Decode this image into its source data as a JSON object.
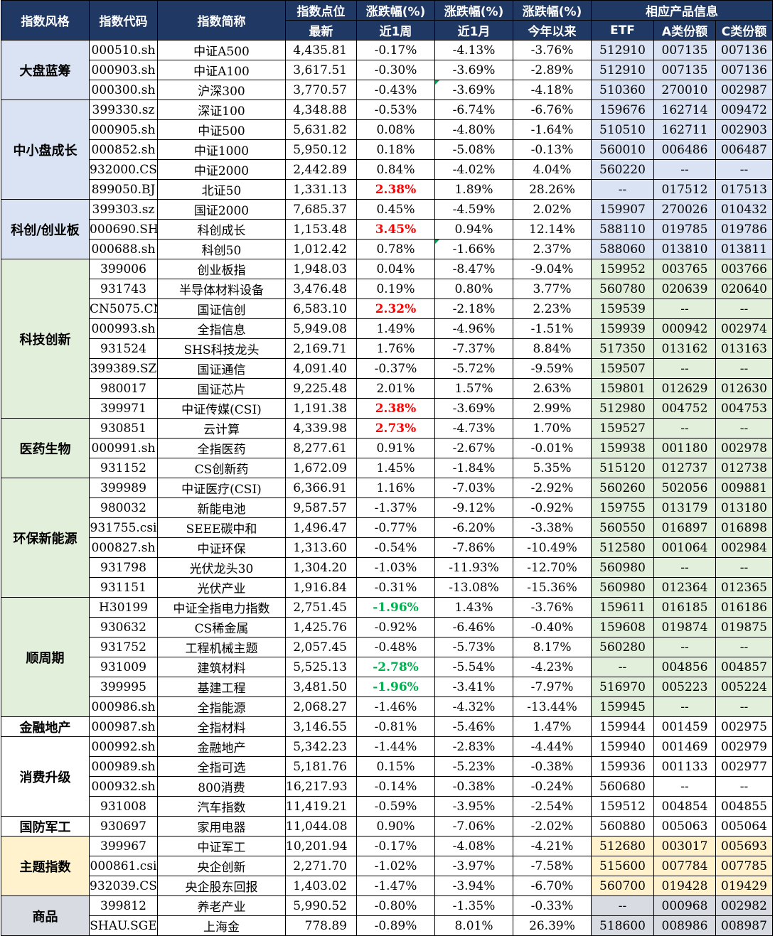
{
  "header": {
    "style": "指数风格",
    "code": "指数代码",
    "name": "指数简称",
    "points_top": "指数点位",
    "points_sub": "最新",
    "chg_top": "涨跌幅(%)",
    "week": "近1周",
    "month": "近1月",
    "ytd": "今年以来",
    "product_top": "相应产品信息",
    "etf": "ETF",
    "a_share": "A类份额",
    "c_share": "C类份额"
  },
  "groups": [
    {
      "category": "大盘蓝筹",
      "rows": [
        [
          "000510.sh",
          "中证A500",
          "4,435.81",
          "-0.17%",
          "-4.13%",
          "-3.76%",
          "512910",
          "007135",
          "007136"
        ],
        [
          "000903.sh",
          "中证A100",
          "3,617.51",
          "-0.30%",
          "-3.69%",
          "-2.89%",
          "512910",
          "007135",
          "007136"
        ],
        [
          "000300.sh",
          "沪深300",
          "3,770.57",
          "-0.43%",
          "-3.69%",
          "-4.18%",
          "510360",
          "270010",
          "002987"
        ]
      ]
    },
    {
      "category": "中小盘成长",
      "rows": [
        [
          "399330.sz",
          "深证100",
          "4,348.88",
          "-0.53%",
          "-6.74%",
          "-6.76%",
          "159676",
          "162714",
          "009472"
        ],
        [
          "000905.sh",
          "中证500",
          "5,631.82",
          "0.08%",
          "-4.80%",
          "-1.64%",
          "510510",
          "162711",
          "002903"
        ],
        [
          "000852.sh",
          "中证1000",
          "5,950.12",
          "0.18%",
          "-5.08%",
          "-0.13%",
          "560010",
          "006486",
          "006487"
        ],
        [
          "932000.CSI",
          "中证2000",
          "2,442.89",
          "0.84%",
          "-4.02%",
          "4.04%",
          "560220",
          "--",
          "--"
        ],
        [
          "899050.BJ",
          "北证50",
          "1,331.13",
          "2.38%",
          "1.89%",
          "28.26%",
          "--",
          "017512",
          "017513"
        ]
      ]
    },
    {
      "category": "科创/创业板",
      "rows": [
        [
          "399303.sz",
          "国证2000",
          "7,685.37",
          "0.45%",
          "-4.59%",
          "2.02%",
          "159907",
          "270026",
          "010432"
        ],
        [
          "000690.SH",
          "科创成长",
          "1,153.48",
          "3.45%",
          "0.94%",
          "12.14%",
          "588110",
          "019785",
          "019786"
        ],
        [
          "000688.sh",
          "科创50",
          "1,012.42",
          "0.78%",
          "-1.66%",
          "2.37%",
          "588060",
          "013810",
          "013811"
        ]
      ]
    },
    {
      "category": "科技创新",
      "rows": [
        [
          "399006",
          "创业板指",
          "1,948.03",
          "0.04%",
          "-8.47%",
          "-9.04%",
          "159952",
          "003765",
          "003766"
        ],
        [
          "931743",
          "半导体材料设备",
          "3,476.48",
          "0.19%",
          "0.80%",
          "3.77%",
          "560780",
          "020639",
          "020640"
        ],
        [
          "CN5075.CN",
          "国证信创",
          "6,583.10",
          "2.32%",
          "-2.18%",
          "2.23%",
          "159539",
          "--",
          "--"
        ],
        [
          "000993.sh",
          "全指信息",
          "5,949.08",
          "1.49%",
          "-4.96%",
          "-1.51%",
          "159939",
          "000942",
          "002974"
        ],
        [
          "931524",
          "SHS科技龙头",
          "2,169.71",
          "1.76%",
          "-7.37%",
          "8.84%",
          "517350",
          "013162",
          "013163"
        ],
        [
          "399389.SZ",
          "国证通信",
          "4,091.40",
          "-0.37%",
          "-5.72%",
          "-9.59%",
          "159507",
          "--",
          "--"
        ],
        [
          "980017",
          "国证芯片",
          "9,225.48",
          "2.01%",
          "1.57%",
          "2.63%",
          "159801",
          "012629",
          "012630"
        ],
        [
          "399971",
          "中证传媒(CSI)",
          "1,191.38",
          "2.38%",
          "-3.69%",
          "2.99%",
          "512980",
          "004752",
          "004753"
        ]
      ]
    },
    {
      "category": "医药生物",
      "rows": [
        [
          "930851",
          "云计算",
          "4,339.98",
          "2.73%",
          "-4.73%",
          "1.70%",
          "159527",
          "--",
          "--"
        ],
        [
          "000991.sh",
          "全指医药",
          "8,277.61",
          "0.91%",
          "-2.67%",
          "-0.01%",
          "159938",
          "001180",
          "002978"
        ],
        [
          "931152",
          "CS创新药",
          "1,672.09",
          "1.45%",
          "-1.84%",
          "5.35%",
          "515120",
          "012737",
          "012738"
        ]
      ]
    },
    {
      "category": "环保新能源",
      "rows": [
        [
          "399989",
          "中证医疗(CSI)",
          "6,366.91",
          "1.16%",
          "-7.03%",
          "-2.92%",
          "560260",
          "502056",
          "009881"
        ],
        [
          "980032",
          "新能电池",
          "9,587.57",
          "-1.37%",
          "-9.12%",
          "-0.92%",
          "159755",
          "013179",
          "013180"
        ],
        [
          "931755.csi",
          "SEEE碳中和",
          "1,496.47",
          "-0.77%",
          "-6.20%",
          "-3.38%",
          "560550",
          "016897",
          "016898"
        ],
        [
          "000827.sh",
          "中证环保",
          "1,313.60",
          "-0.54%",
          "-7.86%",
          "-10.49%",
          "512580",
          "001064",
          "002984"
        ],
        [
          "931798",
          "光伏龙头30",
          "1,304.20",
          "-1.03%",
          "-11.93%",
          "-12.70%",
          "560980",
          "--",
          "--"
        ],
        [
          "931151",
          "光伏产业",
          "1,916.84",
          "-0.31%",
          "-13.08%",
          "-15.36%",
          "560980",
          "012364",
          "012365"
        ]
      ]
    },
    {
      "category": "顺周期",
      "rows": [
        [
          "H30199",
          "中证全指电力指数",
          "2,751.45",
          "-1.96%",
          "1.43%",
          "-3.76%",
          "159611",
          "016185",
          "016186"
        ],
        [
          "930632",
          "CS稀金属",
          "1,425.76",
          "-0.92%",
          "-6.46%",
          "-0.40%",
          "159608",
          "019874",
          "019875"
        ],
        [
          "931752",
          "工程机械主题",
          "2,057.45",
          "-0.48%",
          "-5.73%",
          "8.17%",
          "560280",
          "--",
          "--"
        ],
        [
          "931009",
          "建筑材料",
          "5,525.13",
          "-2.78%",
          "-5.54%",
          "-4.23%",
          "--",
          "004856",
          "004857"
        ],
        [
          "399995",
          "基建工程",
          "3,481.50",
          "-1.96%",
          "-3.41%",
          "-7.97%",
          "516970",
          "005223",
          "005224"
        ],
        [
          "000986.sh",
          "全指能源",
          "2,068.27",
          "-1.46%",
          "-4.32%",
          "-13.44%",
          "159945",
          "--",
          "--"
        ]
      ]
    },
    {
      "category": "金融地产",
      "rows": [
        [
          "000987.sh",
          "全指材料",
          "3,146.55",
          "-0.81%",
          "-5.46%",
          "1.47%",
          "159944",
          "001459",
          "002975"
        ]
      ]
    },
    {
      "category": "消费升级",
      "rows": [
        [
          "000992.sh",
          "金融地产",
          "5,342.23",
          "-1.44%",
          "-2.83%",
          "-4.44%",
          "159940",
          "001469",
          "002979"
        ],
        [
          "000989.sh",
          "全指可选",
          "5,181.76",
          "0.15%",
          "-5.23%",
          "-0.38%",
          "159936",
          "001133",
          "002977"
        ],
        [
          "000932.sh",
          "800消费",
          "16,217.93",
          "-0.14%",
          "-0.38%",
          "-0.24%",
          "560680",
          "--",
          "--"
        ],
        [
          "931008",
          "汽车指数",
          "11,419.21",
          "-0.59%",
          "-3.95%",
          "-2.54%",
          "159512",
          "004854",
          "004855"
        ]
      ]
    },
    {
      "category": "国防军工",
      "rows": [
        [
          "930697",
          "家用电器",
          "11,044.08",
          "0.90%",
          "-7.06%",
          "-2.02%",
          "560880",
          "005063",
          "005064"
        ]
      ]
    },
    {
      "category": "主题指数",
      "rows": [
        [
          "399967",
          "中证军工",
          "10,201.94",
          "-0.17%",
          "-4.08%",
          "-4.21%",
          "512680",
          "003017",
          "005693"
        ],
        [
          "000861.csi",
          "央企创新",
          "2,271.70",
          "-1.02%",
          "-3.97%",
          "-7.58%",
          "515600",
          "007784",
          "007785"
        ],
        [
          "932039.CSI",
          "央企股东回报",
          "1,403.02",
          "-1.47%",
          "-3.94%",
          "-6.70%",
          "560700",
          "019428",
          "019429"
        ]
      ]
    },
    {
      "category": "商品",
      "rows": [
        [
          "399812",
          "养老产业",
          "5,990.52",
          "-0.80%",
          "-1.35%",
          "-0.33%",
          "--",
          "000968",
          "002982"
        ],
        [
          "SHAU.SGE",
          "上海金",
          "778.89",
          "-0.89%",
          "8.01%",
          "26.39%",
          "518600",
          "008986",
          "008987"
        ]
      ]
    }
  ],
  "colors": {
    "header_bg": "#1f3864",
    "blue_tint": "#dae3f3",
    "green_tint": "#e2efda",
    "yellow_tint": "#fff2cc",
    "gray_tint": "#d9dbe3",
    "highlight_up": "#ff0000",
    "highlight_down": "#00b050"
  }
}
